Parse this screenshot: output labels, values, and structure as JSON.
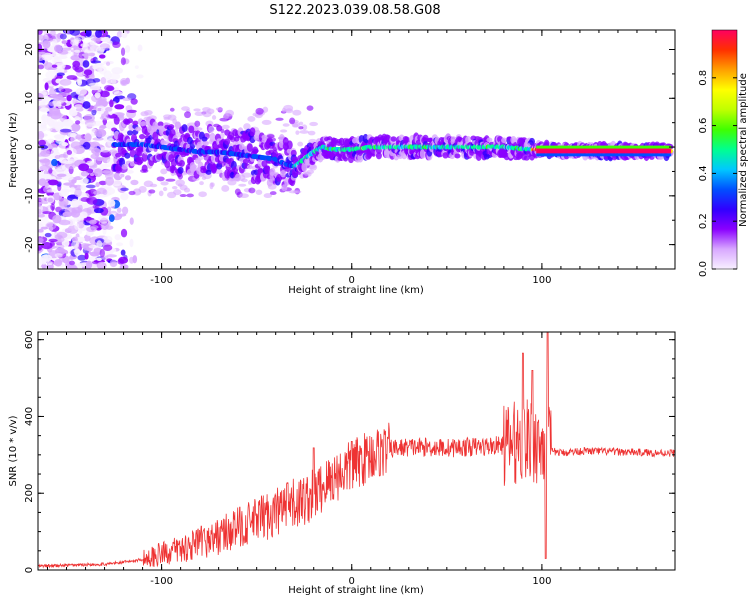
{
  "title": "S122.2023.039.08.58.G08",
  "chart_data": [
    {
      "type": "heatmap",
      "xlabel": "Height of straight line (km)",
      "ylabel": "Frequency (Hz)",
      "xlim": [
        -165,
        170
      ],
      "ylim": [
        -25,
        24
      ],
      "x_ticks": [
        -100,
        0,
        100
      ],
      "y_ticks": [
        -20,
        -10,
        0,
        10,
        20
      ],
      "grid": false,
      "colorbar": {
        "label": "Normalized spectral amplitude",
        "range": [
          0,
          1
        ],
        "ticks": [
          0.0,
          0.2,
          0.4,
          0.6,
          0.8
        ],
        "colors": [
          "#f8f0ff",
          "#d8a8ff",
          "#8a00ff",
          "#3000ff",
          "#0050ff",
          "#00c8ff",
          "#00ff90",
          "#40ff00",
          "#c0ff00",
          "#ffff00",
          "#ffa000",
          "#ff3000",
          "#ff0060"
        ]
      },
      "ridge": {
        "x": [
          -125,
          -110,
          -100,
          -90,
          -80,
          -70,
          -60,
          -50,
          -40,
          -35,
          -30,
          -25,
          -20,
          -15,
          -10,
          -5,
          0,
          10,
          20,
          40,
          60,
          80,
          95,
          100,
          120,
          140,
          170
        ],
        "freq_hz": [
          0.5,
          0.5,
          0.0,
          -0.5,
          -1.0,
          -1.0,
          -1.5,
          -2.0,
          -2.5,
          -3.5,
          -4.0,
          -2.5,
          -1.0,
          0.0,
          -0.5,
          -0.5,
          -0.5,
          0.0,
          0.0,
          0.0,
          0.0,
          0.0,
          -0.5,
          -0.5,
          -0.8,
          -0.8,
          -0.8
        ]
      }
    },
    {
      "type": "line",
      "xlabel": "Height of straight line (km)",
      "ylabel": "SNR (10 * v/v)",
      "xlim": [
        -165,
        170
      ],
      "ylim": [
        0,
        620
      ],
      "x_ticks": [
        -100,
        0,
        100
      ],
      "y_ticks": [
        0,
        200,
        400,
        600
      ],
      "grid": false,
      "color": "#ee3333",
      "series": [
        {
          "x": [
            -165,
            -150,
            -140,
            -130,
            -120,
            -110,
            -100,
            -90,
            -80,
            -70,
            -60,
            -50,
            -40,
            -30,
            -20,
            -10,
            0,
            10,
            20,
            30,
            40,
            50,
            60,
            70,
            80,
            85,
            90,
            95,
            100,
            102,
            105,
            110,
            120,
            140,
            160,
            170
          ],
          "values": [
            10,
            12,
            14,
            15,
            20,
            28,
            42,
            55,
            70,
            88,
            110,
            130,
            150,
            170,
            195,
            240,
            270,
            300,
            315,
            320,
            320,
            318,
            320,
            322,
            325,
            330,
            338,
            335,
            325,
            340,
            310,
            305,
            310,
            308,
            305,
            305
          ]
        }
      ],
      "spikes": [
        {
          "x": -20,
          "value": 318
        },
        {
          "x": 0,
          "value": 335
        },
        {
          "x": 90,
          "value": 565
        },
        {
          "x": 95,
          "value": 520
        },
        {
          "x": 103,
          "value": 620
        },
        {
          "x": 102,
          "value": 30
        }
      ]
    }
  ]
}
